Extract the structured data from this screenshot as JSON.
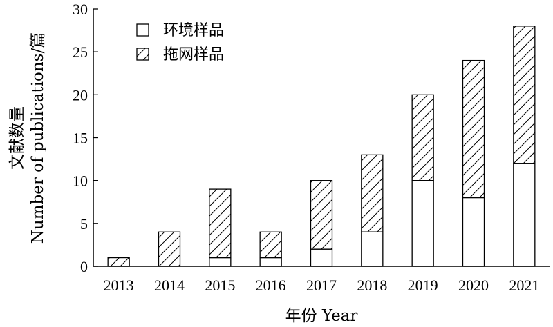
{
  "chart_data": {
    "type": "bar",
    "stacked": true,
    "categories": [
      "2013",
      "2014",
      "2015",
      "2016",
      "2017",
      "2018",
      "2019",
      "2020",
      "2021"
    ],
    "series": [
      {
        "name": "环境样品",
        "fill": "plain",
        "values": [
          0,
          0,
          1,
          1,
          2,
          4,
          10,
          8,
          12
        ]
      },
      {
        "name": "拖网样品",
        "fill": "hatched",
        "values": [
          1,
          4,
          8,
          3,
          8,
          9,
          10,
          16,
          16
        ]
      }
    ],
    "xlabel": "年份 Year",
    "ylabel_cn": "文献数量",
    "ylabel_en": "Number of publications/篇",
    "ylim": [
      0,
      30
    ],
    "yticks": [
      0,
      5,
      10,
      15,
      20,
      25,
      30
    ],
    "grid": false,
    "legend_position": "top-left",
    "colors": {
      "stroke": "#000000",
      "plain_fill": "#ffffff",
      "hatch": "#000000"
    }
  }
}
